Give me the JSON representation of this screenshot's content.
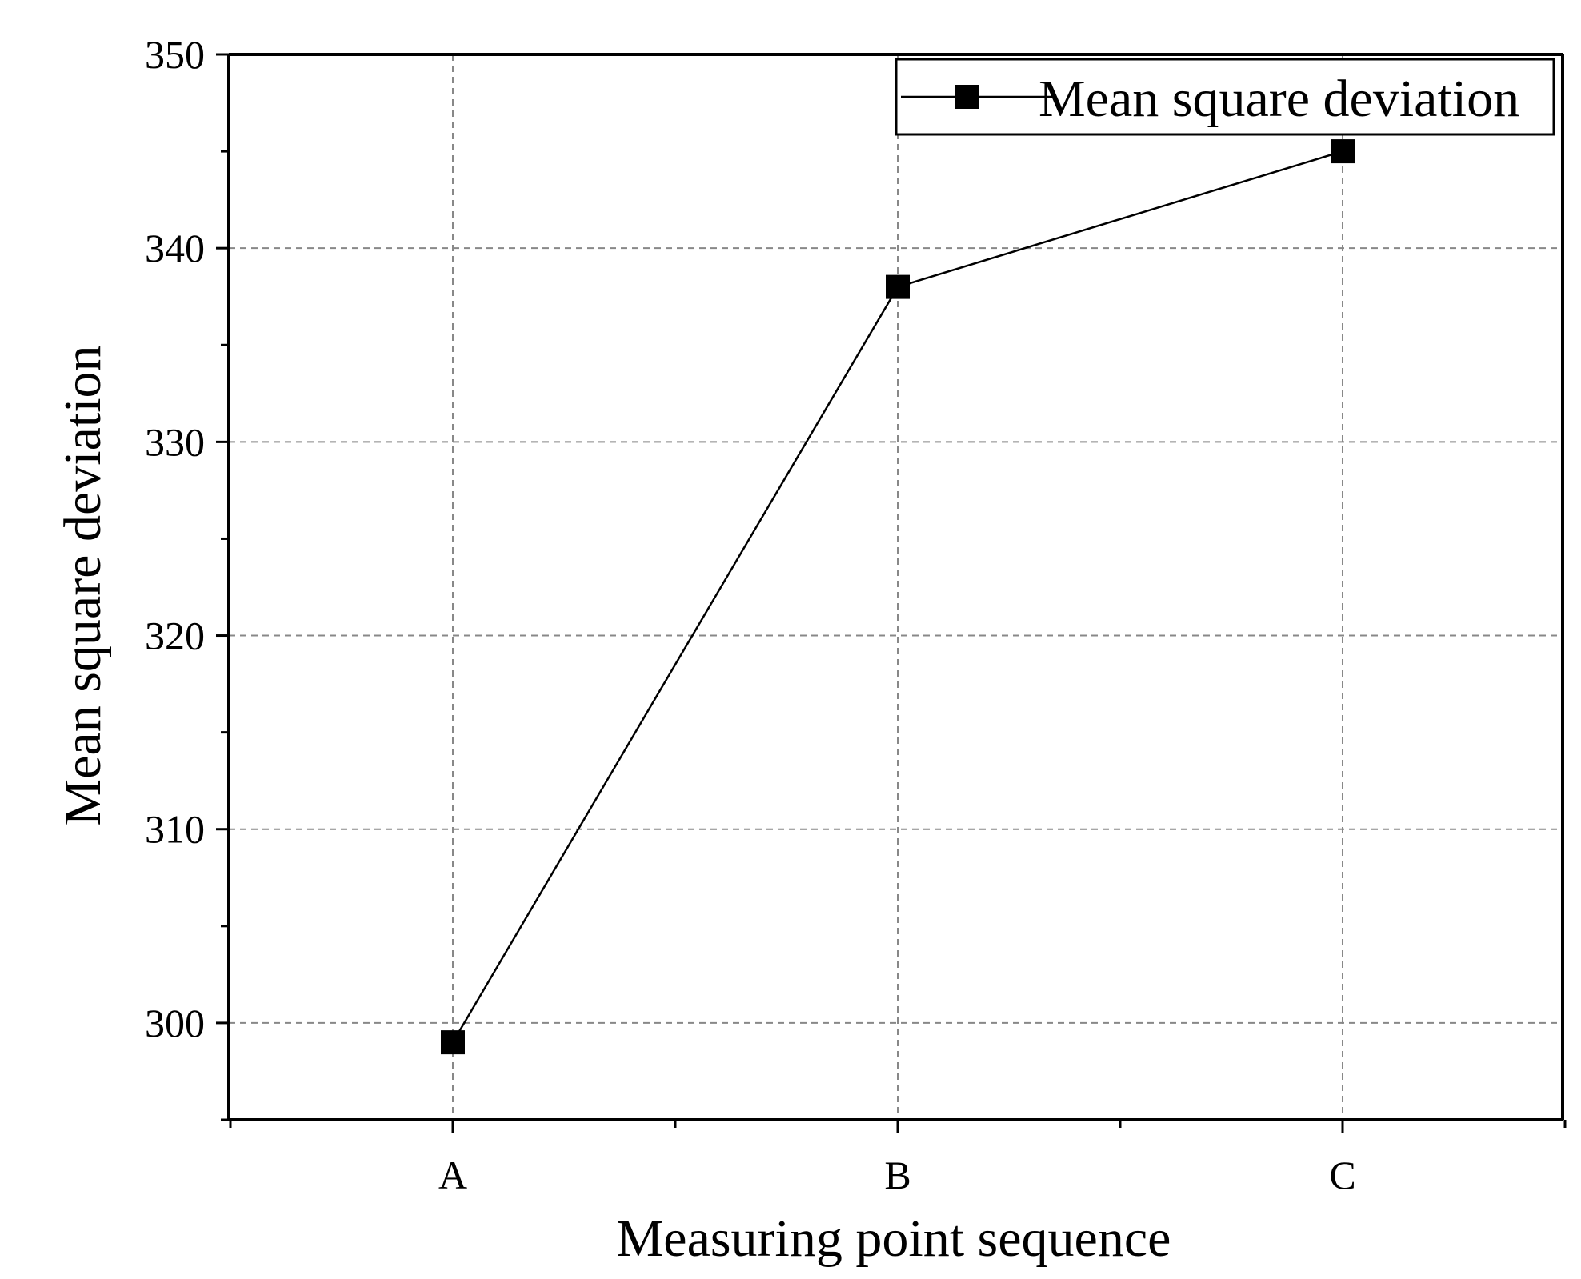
{
  "chart_data": {
    "type": "line",
    "title": "",
    "xlabel": "Measuring point sequence",
    "ylabel": "Mean square deviation",
    "categories": [
      "A",
      "B",
      "C"
    ],
    "series": [
      {
        "name": "Mean square deviation",
        "values": [
          299,
          338,
          345
        ],
        "color": "#000000",
        "marker": "square"
      }
    ],
    "ylim": [
      295,
      350
    ],
    "yticks": [
      "300",
      "310",
      "320",
      "330",
      "340",
      "350"
    ],
    "grid": true,
    "legend_position": "top-right"
  }
}
